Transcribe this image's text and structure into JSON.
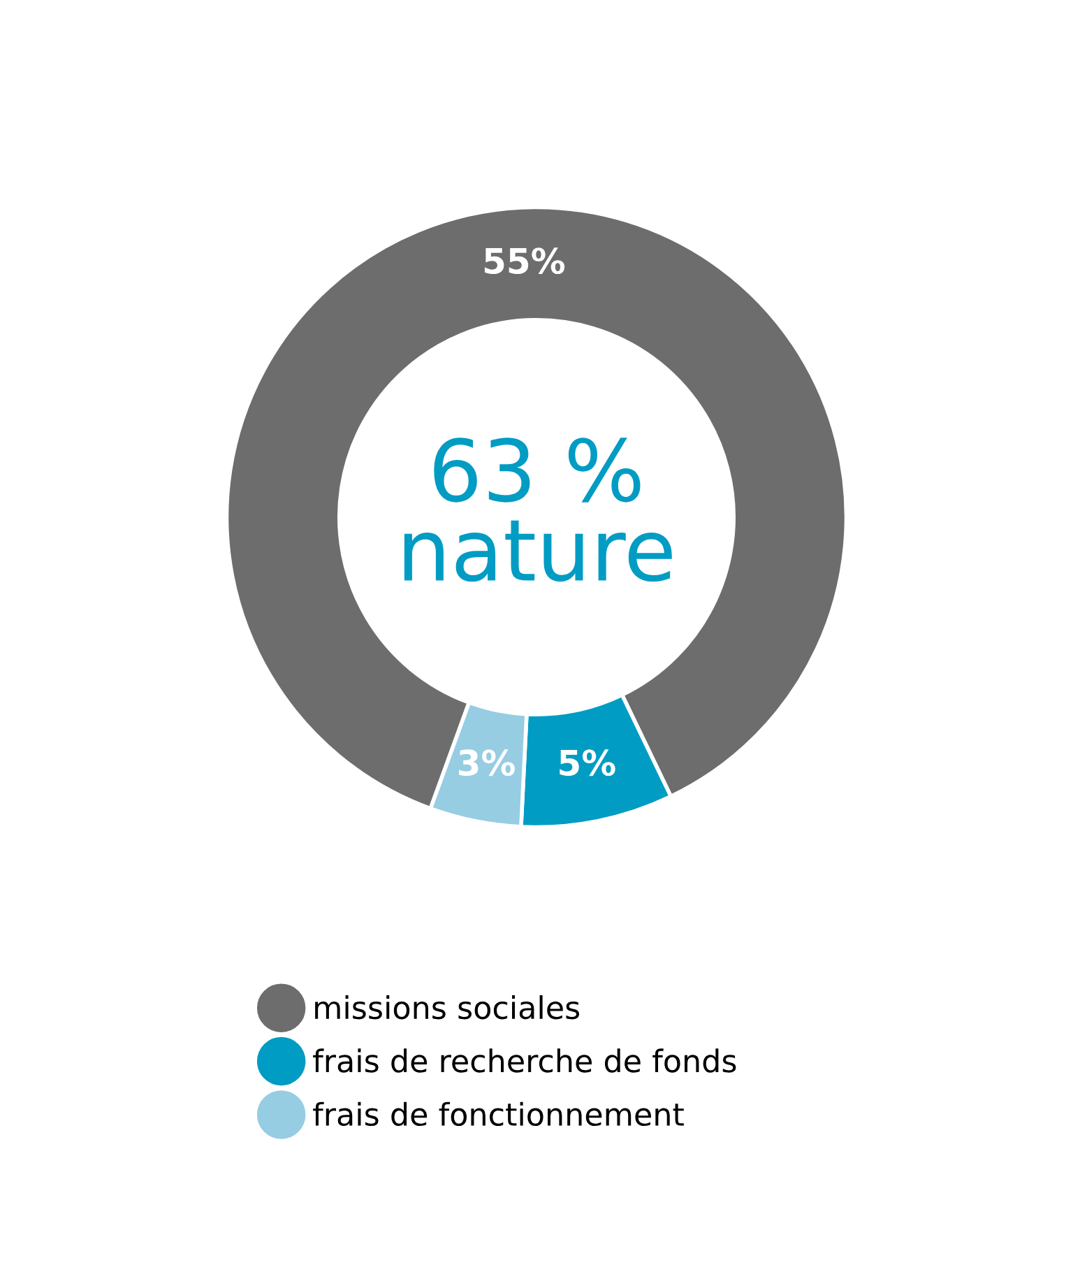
{
  "chart_data": {
    "type": "donut",
    "categories": [
      "missions sociales",
      "frais de recherche de fonds",
      "frais de fonctionnement"
    ],
    "values": [
      55,
      5,
      3
    ],
    "colors": [
      "#6d6d6d",
      "#009cc3",
      "#96cde2"
    ],
    "value_labels": [
      "55%",
      "5%",
      "3%"
    ],
    "annotations": [
      "63 %\nnature"
    ],
    "legend": "bottom"
  }
}
